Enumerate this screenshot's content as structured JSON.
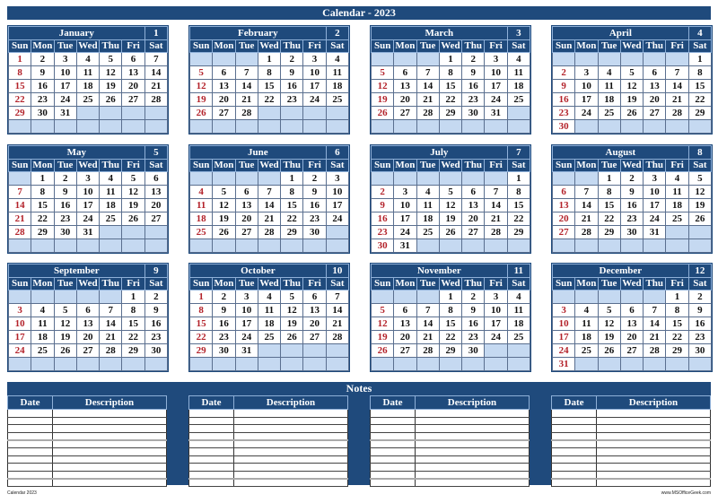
{
  "title": "Calendar - 2023",
  "colors": {
    "header": "#1f4a7c",
    "empty_cell": "#c5d9f1",
    "sunday": "#b3222a"
  },
  "day_names": [
    "Sun",
    "Mon",
    "Tue",
    "Wed",
    "Thu",
    "Fri",
    "Sat"
  ],
  "months": [
    {
      "name": "January",
      "number": "1",
      "weeks": [
        [
          1,
          2,
          3,
          4,
          5,
          6,
          7
        ],
        [
          8,
          9,
          10,
          11,
          12,
          13,
          14
        ],
        [
          15,
          16,
          17,
          18,
          19,
          20,
          21
        ],
        [
          22,
          23,
          24,
          25,
          26,
          27,
          28
        ],
        [
          29,
          30,
          31,
          "",
          "",
          "",
          ""
        ],
        [
          "",
          "",
          "",
          "",
          "",
          "",
          ""
        ]
      ]
    },
    {
      "name": "February",
      "number": "2",
      "weeks": [
        [
          "",
          "",
          "",
          1,
          2,
          3,
          4
        ],
        [
          5,
          6,
          7,
          8,
          9,
          10,
          11
        ],
        [
          12,
          13,
          14,
          15,
          16,
          17,
          18
        ],
        [
          19,
          20,
          21,
          22,
          23,
          24,
          25
        ],
        [
          26,
          27,
          28,
          "",
          "",
          "",
          ""
        ],
        [
          "",
          "",
          "",
          "",
          "",
          "",
          ""
        ]
      ]
    },
    {
      "name": "March",
      "number": "3",
      "weeks": [
        [
          "",
          "",
          "",
          1,
          2,
          3,
          4
        ],
        [
          5,
          6,
          7,
          8,
          9,
          10,
          11
        ],
        [
          12,
          13,
          14,
          15,
          16,
          17,
          18
        ],
        [
          19,
          20,
          21,
          22,
          23,
          24,
          25
        ],
        [
          26,
          27,
          28,
          29,
          30,
          31,
          ""
        ],
        [
          "",
          "",
          "",
          "",
          "",
          "",
          ""
        ]
      ]
    },
    {
      "name": "April",
      "number": "4",
      "weeks": [
        [
          "",
          "",
          "",
          "",
          "",
          "",
          1
        ],
        [
          2,
          3,
          4,
          5,
          6,
          7,
          8
        ],
        [
          9,
          10,
          11,
          12,
          13,
          14,
          15
        ],
        [
          16,
          17,
          18,
          19,
          20,
          21,
          22
        ],
        [
          23,
          24,
          25,
          26,
          27,
          28,
          29
        ],
        [
          30,
          "",
          "",
          "",
          "",
          "",
          ""
        ]
      ]
    },
    {
      "name": "May",
      "number": "5",
      "weeks": [
        [
          "",
          1,
          2,
          3,
          4,
          5,
          6
        ],
        [
          7,
          8,
          9,
          10,
          11,
          12,
          13
        ],
        [
          14,
          15,
          16,
          17,
          18,
          19,
          20
        ],
        [
          21,
          22,
          23,
          24,
          25,
          26,
          27
        ],
        [
          28,
          29,
          30,
          31,
          "",
          "",
          ""
        ],
        [
          "",
          "",
          "",
          "",
          "",
          "",
          ""
        ]
      ]
    },
    {
      "name": "June",
      "number": "6",
      "weeks": [
        [
          "",
          "",
          "",
          "",
          1,
          2,
          3
        ],
        [
          4,
          5,
          6,
          7,
          8,
          9,
          10
        ],
        [
          11,
          12,
          13,
          14,
          15,
          16,
          17
        ],
        [
          18,
          19,
          20,
          21,
          22,
          23,
          24
        ],
        [
          25,
          26,
          27,
          28,
          29,
          30,
          ""
        ],
        [
          "",
          "",
          "",
          "",
          "",
          "",
          ""
        ]
      ]
    },
    {
      "name": "July",
      "number": "7",
      "weeks": [
        [
          "",
          "",
          "",
          "",
          "",
          "",
          1
        ],
        [
          2,
          3,
          4,
          5,
          6,
          7,
          8
        ],
        [
          9,
          10,
          11,
          12,
          13,
          14,
          15
        ],
        [
          16,
          17,
          18,
          19,
          20,
          21,
          22
        ],
        [
          23,
          24,
          25,
          26,
          27,
          28,
          29
        ],
        [
          30,
          31,
          "",
          "",
          "",
          "",
          ""
        ]
      ]
    },
    {
      "name": "August",
      "number": "8",
      "weeks": [
        [
          "",
          "",
          1,
          2,
          3,
          4,
          5
        ],
        [
          6,
          7,
          8,
          9,
          10,
          11,
          12
        ],
        [
          13,
          14,
          15,
          16,
          17,
          18,
          19
        ],
        [
          20,
          21,
          22,
          23,
          24,
          25,
          26
        ],
        [
          27,
          28,
          29,
          30,
          31,
          "",
          ""
        ],
        [
          "",
          "",
          "",
          "",
          "",
          "",
          ""
        ]
      ]
    },
    {
      "name": "September",
      "number": "9",
      "weeks": [
        [
          "",
          "",
          "",
          "",
          "",
          1,
          2
        ],
        [
          3,
          4,
          5,
          6,
          7,
          8,
          9
        ],
        [
          10,
          11,
          12,
          13,
          14,
          15,
          16
        ],
        [
          17,
          18,
          19,
          20,
          21,
          22,
          23
        ],
        [
          24,
          25,
          26,
          27,
          28,
          29,
          30
        ],
        [
          "",
          "",
          "",
          "",
          "",
          "",
          ""
        ]
      ]
    },
    {
      "name": "October",
      "number": "10",
      "weeks": [
        [
          1,
          2,
          3,
          4,
          5,
          6,
          7
        ],
        [
          8,
          9,
          10,
          11,
          12,
          13,
          14
        ],
        [
          15,
          16,
          17,
          18,
          19,
          20,
          21
        ],
        [
          22,
          23,
          24,
          25,
          26,
          27,
          28
        ],
        [
          29,
          30,
          31,
          "",
          "",
          "",
          ""
        ],
        [
          "",
          "",
          "",
          "",
          "",
          "",
          ""
        ]
      ]
    },
    {
      "name": "November",
      "number": "11",
      "weeks": [
        [
          "",
          "",
          "",
          1,
          2,
          3,
          4
        ],
        [
          5,
          6,
          7,
          8,
          9,
          10,
          11
        ],
        [
          12,
          13,
          14,
          15,
          16,
          17,
          18
        ],
        [
          19,
          20,
          21,
          22,
          23,
          24,
          25
        ],
        [
          26,
          27,
          28,
          29,
          30,
          "",
          ""
        ],
        [
          "",
          "",
          "",
          "",
          "",
          "",
          ""
        ]
      ]
    },
    {
      "name": "December",
      "number": "12",
      "weeks": [
        [
          "",
          "",
          "",
          "",
          "",
          1,
          2
        ],
        [
          3,
          4,
          5,
          6,
          7,
          8,
          9
        ],
        [
          10,
          11,
          12,
          13,
          14,
          15,
          16
        ],
        [
          17,
          18,
          19,
          20,
          21,
          22,
          23
        ],
        [
          24,
          25,
          26,
          27,
          28,
          29,
          30
        ],
        [
          31,
          "",
          "",
          "",
          "",
          "",
          ""
        ]
      ]
    }
  ],
  "notes": {
    "title": "Notes",
    "date_header": "Date",
    "description_header": "Description"
  },
  "footer": {
    "left": "Calendar 2023",
    "right": "www.MSOfficeGeek.com"
  }
}
